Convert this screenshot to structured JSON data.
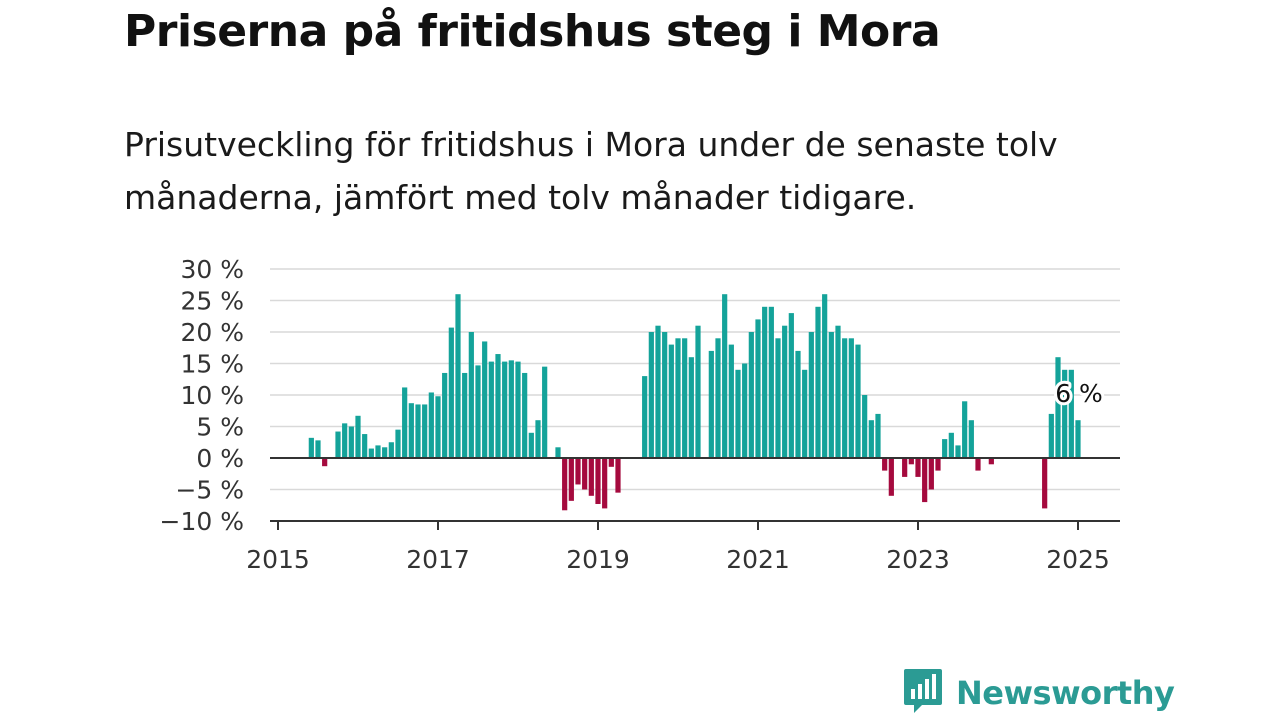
{
  "title": "Priserna på fritidshus steg i Mora",
  "subtitle": "Prisutveckling för fritidshus i Mora under de senaste tolv månaderna, jämfört med tolv månader tidigare.",
  "brand": {
    "name": "Newsworthy",
    "icon": "newsworthy-chart-bubble-icon",
    "color": "#2b9b94"
  },
  "chart_data": {
    "type": "bar",
    "title": "",
    "xlabel": "",
    "ylabel": "",
    "ylim": [
      -10,
      30
    ],
    "y_ticks": [
      30,
      25,
      20,
      15,
      10,
      5,
      0,
      -5,
      -10
    ],
    "y_tick_labels": [
      "30 %",
      "25 %",
      "20 %",
      "15 %",
      "10 %",
      "5 %",
      "0 %",
      "−5 %",
      "−10 %"
    ],
    "x_ticks": [
      2015,
      2017,
      2019,
      2021,
      2023,
      2025
    ],
    "x_tick_labels": [
      "2015",
      "2017",
      "2019",
      "2021",
      "2023",
      "2025"
    ],
    "grid": true,
    "colors": {
      "positive": "#14a39a",
      "negative": "#a50a3e"
    },
    "end_label": "6 %",
    "series": [
      {
        "x": "2015-06",
        "value": 3.2
      },
      {
        "x": "2015-07",
        "value": 2.8
      },
      {
        "x": "2015-08",
        "value": -1.3
      },
      {
        "x": "2015-09",
        "value": null
      },
      {
        "x": "2015-10",
        "value": 4.2
      },
      {
        "x": "2015-11",
        "value": 5.5
      },
      {
        "x": "2015-12",
        "value": 5.0
      },
      {
        "x": "2016-01",
        "value": 6.7
      },
      {
        "x": "2016-02",
        "value": 3.8
      },
      {
        "x": "2016-03",
        "value": 1.5
      },
      {
        "x": "2016-04",
        "value": 2.0
      },
      {
        "x": "2016-05",
        "value": 1.7
      },
      {
        "x": "2016-06",
        "value": 2.5
      },
      {
        "x": "2016-07",
        "value": 4.5
      },
      {
        "x": "2016-08",
        "value": 11.2
      },
      {
        "x": "2016-09",
        "value": 8.7
      },
      {
        "x": "2016-10",
        "value": 8.5
      },
      {
        "x": "2016-11",
        "value": 8.5
      },
      {
        "x": "2016-12",
        "value": 10.4
      },
      {
        "x": "2017-01",
        "value": 9.8
      },
      {
        "x": "2017-02",
        "value": 13.5
      },
      {
        "x": "2017-03",
        "value": 20.7
      },
      {
        "x": "2017-04",
        "value": 26.0
      },
      {
        "x": "2017-05",
        "value": 13.5
      },
      {
        "x": "2017-06",
        "value": 20.0
      },
      {
        "x": "2017-07",
        "value": 14.7
      },
      {
        "x": "2017-08",
        "value": 18.5
      },
      {
        "x": "2017-09",
        "value": 15.3
      },
      {
        "x": "2017-10",
        "value": 16.5
      },
      {
        "x": "2017-11",
        "value": 15.3
      },
      {
        "x": "2017-12",
        "value": 15.5
      },
      {
        "x": "2018-01",
        "value": 15.3
      },
      {
        "x": "2018-02",
        "value": 13.5
      },
      {
        "x": "2018-03",
        "value": 4.0
      },
      {
        "x": "2018-04",
        "value": 6.0
      },
      {
        "x": "2018-05",
        "value": 14.5
      },
      {
        "x": "2018-06",
        "value": null
      },
      {
        "x": "2018-07",
        "value": 1.7
      },
      {
        "x": "2018-08",
        "value": -8.3
      },
      {
        "x": "2018-09",
        "value": -6.8
      },
      {
        "x": "2018-10",
        "value": -4.2
      },
      {
        "x": "2018-11",
        "value": -5.0
      },
      {
        "x": "2018-12",
        "value": -6.0
      },
      {
        "x": "2019-01",
        "value": -7.3
      },
      {
        "x": "2019-02",
        "value": -8.0
      },
      {
        "x": "2019-03",
        "value": -1.4
      },
      {
        "x": "2019-04",
        "value": -5.5
      },
      {
        "x": "2019-05",
        "value": null
      },
      {
        "x": "2019-06",
        "value": null
      },
      {
        "x": "2019-07",
        "value": null
      },
      {
        "x": "2019-08",
        "value": 13.0
      },
      {
        "x": "2019-09",
        "value": 20.0
      },
      {
        "x": "2019-10",
        "value": 21.0
      },
      {
        "x": "2019-11",
        "value": 20.0
      },
      {
        "x": "2019-12",
        "value": 18.0
      },
      {
        "x": "2020-01",
        "value": 19.0
      },
      {
        "x": "2020-02",
        "value": 19.0
      },
      {
        "x": "2020-03",
        "value": 16.0
      },
      {
        "x": "2020-04",
        "value": 21.0
      },
      {
        "x": "2020-05",
        "value": null
      },
      {
        "x": "2020-06",
        "value": 17.0
      },
      {
        "x": "2020-07",
        "value": 19.0
      },
      {
        "x": "2020-08",
        "value": 26.0
      },
      {
        "x": "2020-09",
        "value": 18.0
      },
      {
        "x": "2020-10",
        "value": 14.0
      },
      {
        "x": "2020-11",
        "value": 15.0
      },
      {
        "x": "2020-12",
        "value": 20.0
      },
      {
        "x": "2021-01",
        "value": 22.0
      },
      {
        "x": "2021-02",
        "value": 24.0
      },
      {
        "x": "2021-03",
        "value": 24.0
      },
      {
        "x": "2021-04",
        "value": 19.0
      },
      {
        "x": "2021-05",
        "value": 21.0
      },
      {
        "x": "2021-06",
        "value": 23.0
      },
      {
        "x": "2021-07",
        "value": 17.0
      },
      {
        "x": "2021-08",
        "value": 14.0
      },
      {
        "x": "2021-09",
        "value": 20.0
      },
      {
        "x": "2021-10",
        "value": 24.0
      },
      {
        "x": "2021-11",
        "value": 26.0
      },
      {
        "x": "2021-12",
        "value": 20.0
      },
      {
        "x": "2022-01",
        "value": 21.0
      },
      {
        "x": "2022-02",
        "value": 19.0
      },
      {
        "x": "2022-03",
        "value": 19.0
      },
      {
        "x": "2022-04",
        "value": 18.0
      },
      {
        "x": "2022-05",
        "value": 10.0
      },
      {
        "x": "2022-06",
        "value": 6.0
      },
      {
        "x": "2022-07",
        "value": 7.0
      },
      {
        "x": "2022-08",
        "value": -2.0
      },
      {
        "x": "2022-09",
        "value": -6.0
      },
      {
        "x": "2022-10",
        "value": null
      },
      {
        "x": "2022-11",
        "value": -3.0
      },
      {
        "x": "2022-12",
        "value": -1.0
      },
      {
        "x": "2023-01",
        "value": -3.0
      },
      {
        "x": "2023-02",
        "value": -7.0
      },
      {
        "x": "2023-03",
        "value": -5.0
      },
      {
        "x": "2023-04",
        "value": -2.0
      },
      {
        "x": "2023-05",
        "value": 3.0
      },
      {
        "x": "2023-06",
        "value": 4.0
      },
      {
        "x": "2023-07",
        "value": 2.0
      },
      {
        "x": "2023-08",
        "value": 9.0
      },
      {
        "x": "2023-09",
        "value": 6.0
      },
      {
        "x": "2023-10",
        "value": -2.0
      },
      {
        "x": "2023-11",
        "value": null
      },
      {
        "x": "2023-12",
        "value": -1.0
      },
      {
        "x": "2024-01",
        "value": null
      },
      {
        "x": "2024-02",
        "value": null
      },
      {
        "x": "2024-03",
        "value": null
      },
      {
        "x": "2024-04",
        "value": null
      },
      {
        "x": "2024-05",
        "value": null
      },
      {
        "x": "2024-06",
        "value": null
      },
      {
        "x": "2024-07",
        "value": null
      },
      {
        "x": "2024-08",
        "value": -8.0
      },
      {
        "x": "2024-09",
        "value": 7.0
      },
      {
        "x": "2024-10",
        "value": 16.0
      },
      {
        "x": "2024-11",
        "value": 14.0
      },
      {
        "x": "2024-12",
        "value": 14.0
      },
      {
        "x": "2025-01",
        "value": 6.0
      }
    ]
  }
}
